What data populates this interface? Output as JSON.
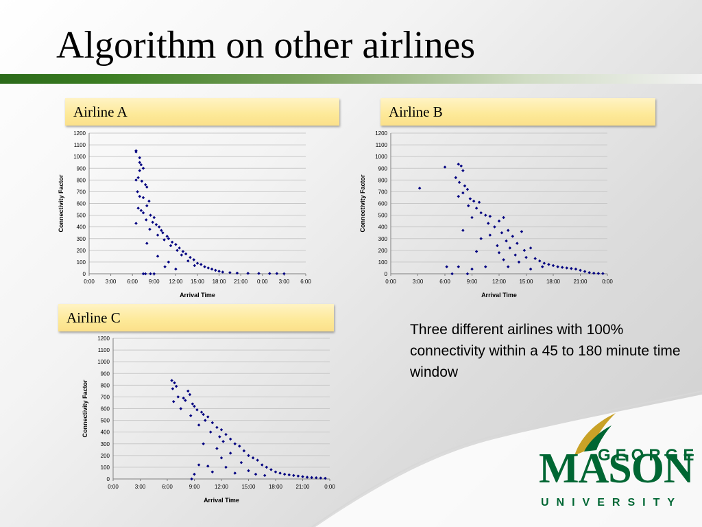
{
  "slide": {
    "title": "Algorithm on other airlines",
    "caption": "Three different airlines with 100% connectivity within a 45 to 180 minute time window"
  },
  "logo": {
    "line1": "GEORGE",
    "line2": "MASON",
    "line3": "UNIVERSITY"
  },
  "colors": {
    "title_bar_dark": "#2b6a1a",
    "label_fill": "#fde998",
    "marker": "#000080",
    "logo_green": "#006633",
    "logo_gold": "#c9a227"
  },
  "chart_data": [
    {
      "type": "scatter",
      "title": "Airline A",
      "xlabel": "Arrival Time",
      "ylabel": "Connectivity Factor",
      "x_ticks": [
        "0:00",
        "3:00",
        "6:00",
        "9:00",
        "12:00",
        "15:00",
        "18:00",
        "21:00",
        "0:00",
        "3:00",
        "6:00"
      ],
      "xlim_hours": [
        0,
        30
      ],
      "ylim": [
        0,
        1200
      ],
      "y_ticks": [
        0,
        100,
        200,
        300,
        400,
        500,
        600,
        700,
        800,
        900,
        1000,
        1100,
        1200
      ],
      "grid": true,
      "series": [
        {
          "points": [
            [
              6.5,
              1050
            ],
            [
              6.5,
              1040
            ],
            [
              7.0,
              990
            ],
            [
              7.0,
              950
            ],
            [
              7.2,
              930
            ],
            [
              7.5,
              900
            ],
            [
              7.0,
              880
            ],
            [
              6.8,
              820
            ],
            [
              7.3,
              790
            ],
            [
              6.5,
              800
            ],
            [
              7.8,
              760
            ],
            [
              8.0,
              740
            ],
            [
              6.7,
              700
            ],
            [
              7.0,
              660
            ],
            [
              7.5,
              650
            ],
            [
              8.3,
              620
            ],
            [
              8.0,
              580
            ],
            [
              6.8,
              560
            ],
            [
              7.2,
              540
            ],
            [
              7.5,
              520
            ],
            [
              8.5,
              500
            ],
            [
              9.0,
              480
            ],
            [
              7.9,
              460
            ],
            [
              8.8,
              440
            ],
            [
              6.5,
              430
            ],
            [
              9.3,
              420
            ],
            [
              9.7,
              400
            ],
            [
              8.4,
              380
            ],
            [
              10.0,
              370
            ],
            [
              10.2,
              350
            ],
            [
              9.5,
              330
            ],
            [
              10.8,
              320
            ],
            [
              11.0,
              300
            ],
            [
              10.4,
              290
            ],
            [
              11.5,
              270
            ],
            [
              12.0,
              250
            ],
            [
              11.3,
              240
            ],
            [
              12.5,
              220
            ],
            [
              12.2,
              200
            ],
            [
              13.0,
              190
            ],
            [
              13.4,
              170
            ],
            [
              12.8,
              160
            ],
            [
              14.0,
              140
            ],
            [
              14.5,
              120
            ],
            [
              13.7,
              110
            ],
            [
              15.0,
              90
            ],
            [
              15.5,
              80
            ],
            [
              14.6,
              70
            ],
            [
              16.0,
              60
            ],
            [
              16.5,
              50
            ],
            [
              17.0,
              40
            ],
            [
              17.5,
              30
            ],
            [
              18.0,
              22
            ],
            [
              18.5,
              15
            ],
            [
              19.5,
              10
            ],
            [
              20.5,
              6
            ],
            [
              22.0,
              4
            ],
            [
              23.5,
              3
            ],
            [
              25.0,
              2
            ],
            [
              26.0,
              2
            ],
            [
              27.0,
              1
            ],
            [
              8.5,
              0
            ],
            [
              9.0,
              0
            ],
            [
              7.5,
              0
            ],
            [
              7.8,
              0
            ],
            [
              11.0,
              100
            ],
            [
              10.5,
              60
            ],
            [
              12.0,
              40
            ],
            [
              9.5,
              150
            ],
            [
              8.0,
              260
            ]
          ]
        }
      ]
    },
    {
      "type": "scatter",
      "title": "Airline B",
      "xlabel": "Arrival Time",
      "ylabel": "Connectivity Factor",
      "x_ticks": [
        "0:00",
        "3:00",
        "6:00",
        "9:00",
        "12:00",
        "15:00",
        "18:00",
        "21:00",
        "0:00"
      ],
      "xlim_hours": [
        0,
        24
      ],
      "ylim": [
        0,
        1200
      ],
      "y_ticks": [
        0,
        100,
        200,
        300,
        400,
        500,
        600,
        700,
        800,
        900,
        1000,
        1100,
        1200
      ],
      "grid": true,
      "series": [
        {
          "points": [
            [
              3.2,
              730
            ],
            [
              6.0,
              910
            ],
            [
              7.5,
              935
            ],
            [
              7.8,
              920
            ],
            [
              8.0,
              880
            ],
            [
              7.2,
              820
            ],
            [
              7.6,
              780
            ],
            [
              8.2,
              750
            ],
            [
              8.5,
              720
            ],
            [
              8.0,
              690
            ],
            [
              7.5,
              660
            ],
            [
              8.8,
              640
            ],
            [
              9.2,
              620
            ],
            [
              9.8,
              610
            ],
            [
              8.6,
              580
            ],
            [
              9.5,
              560
            ],
            [
              10.0,
              520
            ],
            [
              10.5,
              500
            ],
            [
              9.0,
              480
            ],
            [
              11.0,
              490
            ],
            [
              12.5,
              480
            ],
            [
              12.0,
              450
            ],
            [
              10.8,
              430
            ],
            [
              11.5,
              400
            ],
            [
              8.0,
              370
            ],
            [
              13.0,
              370
            ],
            [
              12.3,
              350
            ],
            [
              14.5,
              360
            ],
            [
              11.0,
              330
            ],
            [
              13.5,
              320
            ],
            [
              10.0,
              300
            ],
            [
              12.8,
              280
            ],
            [
              14.0,
              260
            ],
            [
              11.8,
              240
            ],
            [
              13.2,
              220
            ],
            [
              15.5,
              220
            ],
            [
              14.8,
              200
            ],
            [
              9.5,
              190
            ],
            [
              12.0,
              180
            ],
            [
              13.8,
              160
            ],
            [
              15.0,
              140
            ],
            [
              16.0,
              130
            ],
            [
              16.5,
              110
            ],
            [
              14.2,
              100
            ],
            [
              17.0,
              90
            ],
            [
              17.5,
              80
            ],
            [
              18.0,
              70
            ],
            [
              18.5,
              60
            ],
            [
              19.0,
              55
            ],
            [
              19.5,
              50
            ],
            [
              20.0,
              45
            ],
            [
              20.5,
              40
            ],
            [
              21.0,
              30
            ],
            [
              21.5,
              20
            ],
            [
              22.0,
              10
            ],
            [
              22.5,
              5
            ],
            [
              23.0,
              3
            ],
            [
              23.5,
              2
            ],
            [
              6.2,
              60
            ],
            [
              7.5,
              60
            ],
            [
              9.0,
              40
            ],
            [
              10.5,
              60
            ],
            [
              8.5,
              0
            ],
            [
              6.8,
              0
            ],
            [
              12.5,
              120
            ],
            [
              13.0,
              60
            ],
            [
              15.5,
              40
            ],
            [
              16.8,
              60
            ]
          ]
        }
      ]
    },
    {
      "type": "scatter",
      "title": "Airline C",
      "xlabel": "Arrival Time",
      "ylabel": "Connectivity Factor",
      "x_ticks": [
        "0:00",
        "3:00",
        "6:00",
        "9:00",
        "12:00",
        "15:00",
        "18:00",
        "21:00",
        "0:00"
      ],
      "xlim_hours": [
        0,
        24
      ],
      "ylim": [
        0,
        1200
      ],
      "y_ticks": [
        0,
        100,
        200,
        300,
        400,
        500,
        600,
        700,
        800,
        900,
        1000,
        1100,
        1200
      ],
      "grid": true,
      "series": [
        {
          "points": [
            [
              6.5,
              840
            ],
            [
              6.8,
              820
            ],
            [
              7.0,
              790
            ],
            [
              6.6,
              770
            ],
            [
              8.3,
              750
            ],
            [
              8.5,
              720
            ],
            [
              7.2,
              700
            ],
            [
              7.8,
              690
            ],
            [
              8.0,
              670
            ],
            [
              6.7,
              660
            ],
            [
              8.8,
              640
            ],
            [
              9.0,
              620
            ],
            [
              7.5,
              600
            ],
            [
              9.3,
              590
            ],
            [
              9.8,
              570
            ],
            [
              10.0,
              550
            ],
            [
              8.6,
              540
            ],
            [
              10.5,
              530
            ],
            [
              10.2,
              500
            ],
            [
              11.0,
              480
            ],
            [
              9.5,
              460
            ],
            [
              11.5,
              440
            ],
            [
              12.0,
              420
            ],
            [
              10.8,
              400
            ],
            [
              12.5,
              380
            ],
            [
              11.8,
              360
            ],
            [
              13.0,
              340
            ],
            [
              12.2,
              320
            ],
            [
              10.0,
              300
            ],
            [
              13.5,
              300
            ],
            [
              14.0,
              280
            ],
            [
              11.5,
              260
            ],
            [
              14.5,
              240
            ],
            [
              13.0,
              220
            ],
            [
              15.0,
              200
            ],
            [
              12.0,
              180
            ],
            [
              15.5,
              180
            ],
            [
              16.0,
              160
            ],
            [
              14.2,
              140
            ],
            [
              16.5,
              120
            ],
            [
              10.5,
              110
            ],
            [
              17.0,
              100
            ],
            [
              17.5,
              80
            ],
            [
              15.0,
              70
            ],
            [
              18.0,
              60
            ],
            [
              18.5,
              50
            ],
            [
              19.0,
              40
            ],
            [
              19.5,
              35
            ],
            [
              20.0,
              30
            ],
            [
              20.5,
              25
            ],
            [
              21.0,
              20
            ],
            [
              21.5,
              15
            ],
            [
              22.0,
              12
            ],
            [
              22.5,
              10
            ],
            [
              23.0,
              8
            ],
            [
              23.5,
              6
            ],
            [
              8.7,
              0
            ],
            [
              9.0,
              40
            ],
            [
              9.5,
              120
            ],
            [
              11.0,
              60
            ],
            [
              12.5,
              100
            ],
            [
              13.5,
              50
            ],
            [
              15.8,
              40
            ],
            [
              16.8,
              30
            ]
          ]
        }
      ]
    }
  ]
}
